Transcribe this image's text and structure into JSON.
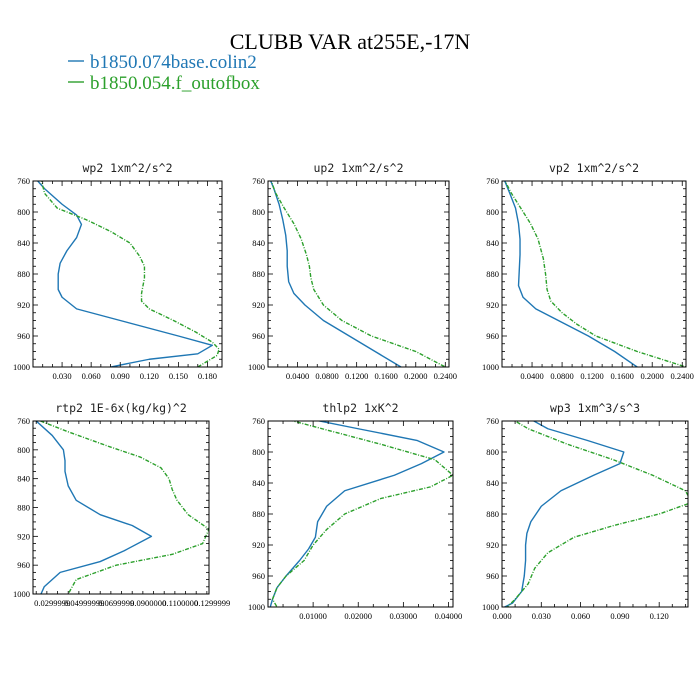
{
  "header": {
    "title": "CLUBB VAR at255E,-17N",
    "legend": [
      {
        "label": "b1850.074base.colin2",
        "color": "#1f77b4"
      },
      {
        "label": "b1850.054.f_outofbox",
        "color": "#2ca02c"
      }
    ]
  },
  "chart_data": [
    {
      "type": "line",
      "title": "wp2  1xm^2/s^2",
      "xlim": [
        0,
        0.195
      ],
      "ylim": [
        760,
        1000
      ],
      "y_inverted": true,
      "xticks": [
        0.03,
        0.06,
        0.09,
        0.12,
        0.15,
        0.18
      ],
      "xtick_labels": [
        "0.030",
        "0.060",
        "0.090",
        "0.120",
        "0.150",
        "0.180"
      ],
      "yticks": [
        760,
        800,
        840,
        880,
        920,
        960,
        1000
      ],
      "series": [
        {
          "color": "#1f77b4",
          "style": "solid",
          "y": [
            756,
            770,
            790,
            804,
            816,
            833,
            850,
            866,
            880,
            900,
            910,
            925,
            940,
            960,
            972,
            983,
            990,
            1000
          ],
          "x": [
            0.002,
            0.012,
            0.03,
            0.045,
            0.05,
            0.045,
            0.035,
            0.028,
            0.026,
            0.026,
            0.03,
            0.045,
            0.09,
            0.15,
            0.185,
            0.17,
            0.12,
            0.08
          ]
        },
        {
          "color": "#2ca02c",
          "style": "dashed",
          "y": [
            756,
            776,
            795,
            810,
            825,
            840,
            857,
            870,
            885,
            905,
            915,
            925,
            940,
            955,
            968,
            977,
            985,
            1000
          ],
          "x": [
            0.008,
            0.012,
            0.025,
            0.055,
            0.08,
            0.1,
            0.11,
            0.115,
            0.115,
            0.112,
            0.112,
            0.12,
            0.145,
            0.168,
            0.185,
            0.192,
            0.19,
            0.17
          ]
        }
      ]
    },
    {
      "type": "line",
      "title": "up2  1xm^2/s^2",
      "xlim": [
        0,
        0.245
      ],
      "ylim": [
        760,
        1000
      ],
      "y_inverted": true,
      "xticks": [
        0.04,
        0.08,
        0.12,
        0.16,
        0.2,
        0.24
      ],
      "xtick_labels": [
        "0.0400",
        "0.0800",
        "0.1200",
        "0.1600",
        "0.2000",
        "0.2400"
      ],
      "yticks": [
        760,
        800,
        840,
        880,
        920,
        960,
        1000
      ],
      "series": [
        {
          "color": "#1f77b4",
          "style": "solid",
          "y": [
            756,
            770,
            790,
            810,
            830,
            850,
            870,
            890,
            905,
            920,
            940,
            960,
            980,
            1000
          ],
          "x": [
            0.002,
            0.008,
            0.015,
            0.02,
            0.024,
            0.026,
            0.026,
            0.028,
            0.035,
            0.05,
            0.075,
            0.11,
            0.145,
            0.18
          ]
        },
        {
          "color": "#2ca02c",
          "style": "dashed",
          "y": [
            756,
            775,
            795,
            815,
            835,
            855,
            870,
            885,
            900,
            920,
            940,
            960,
            980,
            1000
          ],
          "x": [
            0.003,
            0.01,
            0.022,
            0.035,
            0.045,
            0.052,
            0.056,
            0.058,
            0.062,
            0.075,
            0.1,
            0.14,
            0.2,
            0.24
          ]
        }
      ]
    },
    {
      "type": "line",
      "title": "vp2  1xm^2/s^2",
      "xlim": [
        0,
        0.245
      ],
      "ylim": [
        760,
        1000
      ],
      "y_inverted": true,
      "xticks": [
        0.04,
        0.08,
        0.12,
        0.16,
        0.2,
        0.24
      ],
      "xtick_labels": [
        "0.0400",
        "0.0800",
        "0.1200",
        "0.1600",
        "0.2000",
        "0.2400"
      ],
      "yticks": [
        760,
        800,
        840,
        880,
        920,
        960,
        1000
      ],
      "series": [
        {
          "color": "#1f77b4",
          "style": "solid",
          "y": [
            756,
            775,
            795,
            815,
            835,
            855,
            875,
            895,
            910,
            925,
            940,
            960,
            980,
            1000
          ],
          "x": [
            0.002,
            0.01,
            0.018,
            0.022,
            0.024,
            0.024,
            0.023,
            0.022,
            0.028,
            0.045,
            0.075,
            0.115,
            0.15,
            0.18
          ]
        },
        {
          "color": "#2ca02c",
          "style": "dashed",
          "y": [
            756,
            775,
            795,
            815,
            835,
            860,
            880,
            900,
            915,
            930,
            945,
            960,
            980,
            1000
          ],
          "x": [
            0.002,
            0.012,
            0.025,
            0.038,
            0.048,
            0.055,
            0.058,
            0.06,
            0.065,
            0.08,
            0.1,
            0.125,
            0.18,
            0.245
          ]
        }
      ]
    },
    {
      "type": "line",
      "title": "rtp2  1E-6x(kg/kg)^2",
      "xlim": [
        0.018,
        0.128
      ],
      "ylim": [
        760,
        1000
      ],
      "y_inverted": true,
      "xticks": [
        0.03,
        0.05,
        0.07,
        0.09,
        0.11,
        0.13
      ],
      "xtick_labels": [
        "0.0299999",
        "0.04999999",
        "0.0699999",
        "0.0900000",
        "0.1100000",
        "0.1299999"
      ],
      "yticks": [
        760,
        800,
        840,
        880,
        920,
        960,
        1000
      ],
      "series": [
        {
          "color": "#1f77b4",
          "style": "solid",
          "y": [
            756,
            780,
            800,
            815,
            830,
            850,
            870,
            890,
            905,
            920,
            940,
            955,
            970,
            990,
            1000
          ],
          "x": [
            0.018,
            0.03,
            0.037,
            0.038,
            0.038,
            0.04,
            0.045,
            0.06,
            0.08,
            0.092,
            0.075,
            0.06,
            0.035,
            0.025,
            0.023
          ]
        },
        {
          "color": "#2ca02c",
          "style": "dashed",
          "y": [
            756,
            775,
            795,
            810,
            825,
            840,
            855,
            870,
            890,
            910,
            930,
            945,
            960,
            980,
            1000
          ],
          "x": [
            0.018,
            0.04,
            0.065,
            0.085,
            0.098,
            0.103,
            0.105,
            0.108,
            0.115,
            0.128,
            0.124,
            0.105,
            0.07,
            0.045,
            0.04
          ]
        }
      ]
    },
    {
      "type": "line",
      "title": "thlp2  1xK^2",
      "xlim": [
        0,
        0.041
      ],
      "ylim": [
        760,
        1000
      ],
      "y_inverted": true,
      "xticks": [
        0.01,
        0.02,
        0.03,
        0.04
      ],
      "xtick_labels": [
        "0.01000",
        "0.02000",
        "0.03000",
        "0.04000"
      ],
      "yticks": [
        760,
        800,
        840,
        880,
        920,
        960,
        1000
      ],
      "series": [
        {
          "color": "#1f77b4",
          "style": "solid",
          "y": [
            756,
            770,
            785,
            800,
            815,
            830,
            850,
            870,
            890,
            910,
            925,
            940,
            960,
            975,
            990,
            1000
          ],
          "x": [
            0.008,
            0.02,
            0.033,
            0.039,
            0.034,
            0.028,
            0.017,
            0.013,
            0.011,
            0.0105,
            0.009,
            0.007,
            0.004,
            0.002,
            0.001,
            0.0005
          ]
        },
        {
          "color": "#2ca02c",
          "style": "dashed",
          "y": [
            756,
            770,
            790,
            810,
            830,
            845,
            860,
            880,
            900,
            920,
            940,
            960,
            975,
            990,
            1000
          ],
          "x": [
            0.003,
            0.012,
            0.025,
            0.037,
            0.041,
            0.036,
            0.025,
            0.017,
            0.013,
            0.01,
            0.008,
            0.004,
            0.002,
            0.001,
            0.002
          ]
        }
      ]
    },
    {
      "type": "line",
      "title": "wp3  1xm^3/s^3",
      "xlim": [
        0,
        0.142
      ],
      "ylim": [
        760,
        1000
      ],
      "y_inverted": true,
      "xticks": [
        0.0,
        0.03,
        0.06,
        0.09,
        0.12
      ],
      "xtick_labels": [
        "0.000",
        "0.030",
        "0.060",
        "0.090",
        "0.120"
      ],
      "yticks": [
        760,
        800,
        840,
        880,
        920,
        960,
        1000
      ],
      "series": [
        {
          "color": "#1f77b4",
          "style": "solid",
          "y": [
            756,
            770,
            785,
            800,
            815,
            830,
            850,
            870,
            890,
            905,
            920,
            940,
            960,
            980,
            995,
            1000
          ],
          "x": [
            0.02,
            0.035,
            0.065,
            0.093,
            0.09,
            0.07,
            0.045,
            0.03,
            0.022,
            0.019,
            0.018,
            0.018,
            0.017,
            0.015,
            0.008,
            0.002
          ]
        },
        {
          "color": "#2ca02c",
          "style": "dashed",
          "y": [
            756,
            770,
            790,
            810,
            830,
            850,
            865,
            880,
            895,
            910,
            930,
            950,
            970,
            990,
            1000
          ],
          "x": [
            0.006,
            0.02,
            0.05,
            0.085,
            0.115,
            0.14,
            0.145,
            0.12,
            0.085,
            0.055,
            0.035,
            0.025,
            0.02,
            0.01,
            0.004
          ]
        }
      ]
    }
  ]
}
